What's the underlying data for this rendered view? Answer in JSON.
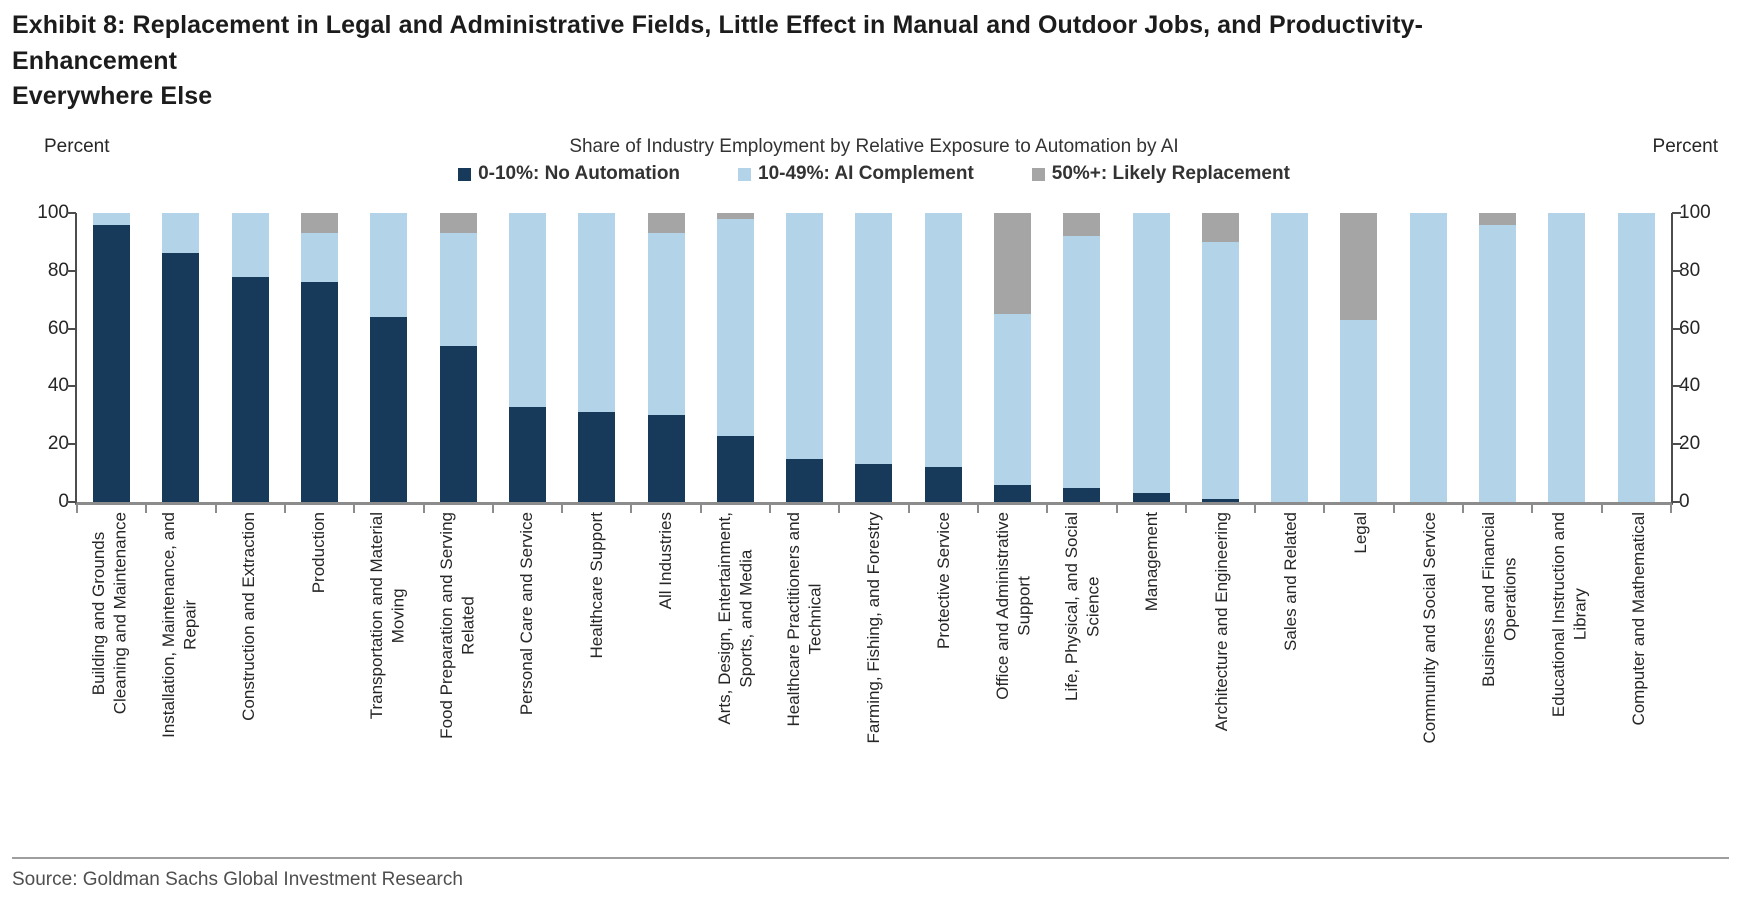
{
  "page": {
    "title": "Exhibit 8: Replacement in Legal and Administrative Fields, Little Effect in Manual and Outdoor Jobs, and Productivity-Enhancement\nEverywhere Else",
    "source": "Source: Goldman Sachs Global Investment Research"
  },
  "chart_data": {
    "type": "bar",
    "stacked": true,
    "title": "Share of Industry Employment by Relative Exposure to Automation by AI",
    "y_axis_left_label": "Percent",
    "y_axis_right_label": "Percent",
    "ylim": [
      0,
      100
    ],
    "yticks": [
      0,
      20,
      40,
      60,
      80,
      100
    ],
    "grid": false,
    "legend_position": "top-center",
    "categories": [
      "Building and Grounds Cleaning and Maintenance",
      "Installation, Maintenance, and Repair",
      "Construction and Extraction",
      "Production",
      "Transportation and Material Moving",
      "Food Preparation and Serving Related",
      "Personal Care and Service",
      "Healthcare Support",
      "All Industries",
      "Arts, Design, Entertainment, Sports, and Media",
      "Healthcare Practitioners and Technical",
      "Farming, Fishing, and Forestry",
      "Protective Service",
      "Office and Administrative Support",
      "Life, Physical, and Social Science",
      "Management",
      "Architecture and Engineering",
      "Sales and Related",
      "Legal",
      "Community and Social Service",
      "Business and Financial Operations",
      "Educational Instruction and Library",
      "Computer and Mathematical"
    ],
    "category_label_lines": [
      [
        "Building and Grounds",
        "Cleaning and Maintenance"
      ],
      [
        "Installation, Maintenance, and",
        "Repair"
      ],
      [
        "Construction and Extraction"
      ],
      [
        "Production"
      ],
      [
        "Transportation and Material",
        "Moving"
      ],
      [
        "Food Preparation and Serving",
        "Related"
      ],
      [
        "Personal Care and Service"
      ],
      [
        "Healthcare Support"
      ],
      [
        "All Industries"
      ],
      [
        "Arts, Design, Entertainment,",
        "Sports, and Media"
      ],
      [
        "Healthcare Practitioners and",
        "Technical"
      ],
      [
        "Farming, Fishing, and Forestry"
      ],
      [
        "Protective Service"
      ],
      [
        "Office and Administrative",
        "Support"
      ],
      [
        "Life, Physical, and Social",
        "Science"
      ],
      [
        "Management"
      ],
      [
        "Architecture and Engineering"
      ],
      [
        "Sales and Related"
      ],
      [
        "Legal"
      ],
      [
        "Community and Social Service"
      ],
      [
        "Business and Financial",
        "Operations"
      ],
      [
        "Educational Instruction and",
        "Library"
      ],
      [
        "Computer and Mathematical"
      ]
    ],
    "series": [
      {
        "name": "0-10%: No Automation",
        "color_key": "no_automation",
        "values": [
          96,
          86,
          78,
          76,
          64,
          54,
          33,
          31,
          30,
          23,
          15,
          13,
          12,
          6,
          5,
          3,
          1,
          0,
          0,
          0,
          0,
          0,
          0
        ]
      },
      {
        "name": "10-49%: AI Complement",
        "color_key": "ai_complement",
        "values": [
          4,
          14,
          22,
          17,
          36,
          39,
          67,
          69,
          63,
          75,
          85,
          87,
          88,
          59,
          87,
          97,
          89,
          100,
          63,
          100,
          96,
          100,
          100
        ]
      },
      {
        "name": "50%+: Likely Replacement",
        "color_key": "likely_replacement",
        "values": [
          0,
          0,
          0,
          7,
          0,
          7,
          0,
          0,
          7,
          2,
          0,
          0,
          0,
          35,
          8,
          0,
          10,
          0,
          37,
          0,
          4,
          0,
          0
        ]
      }
    ],
    "colors": {
      "no_automation": "#183A5A",
      "ai_complement": "#B3D4E8",
      "likely_replacement": "#A5A5A5"
    }
  }
}
